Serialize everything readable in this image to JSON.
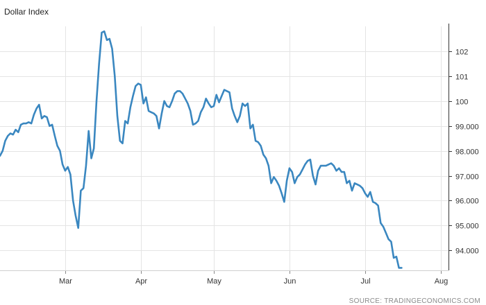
{
  "chart_data": {
    "type": "line",
    "title": "Dollar Index",
    "source": "SOURCE: TRADINGECONOMICS.COM",
    "line_color": "#3a87c0",
    "grid": true,
    "xlim": [
      0,
      172
    ],
    "ylim": [
      93.2,
      103.0
    ],
    "x_ticks": [
      {
        "label": "Mar",
        "x": 25
      },
      {
        "label": "Apr",
        "x": 54
      },
      {
        "label": "May",
        "x": 82
      },
      {
        "label": "Jun",
        "x": 111
      },
      {
        "label": "Jul",
        "x": 140
      },
      {
        "label": "Aug",
        "x": 169
      }
    ],
    "y_ticks": [
      {
        "label": "94.000",
        "value": 94
      },
      {
        "label": "95.000",
        "value": 95
      },
      {
        "label": "96.000",
        "value": 96
      },
      {
        "label": "97.000",
        "value": 97
      },
      {
        "label": "98.000",
        "value": 98
      },
      {
        "label": "99.000",
        "value": 99
      },
      {
        "label": "100",
        "value": 100
      },
      {
        "label": "101",
        "value": 101
      },
      {
        "label": "102",
        "value": 102
      }
    ],
    "series": [
      {
        "values": [
          [
            0,
            97.8
          ],
          [
            1,
            98.0
          ],
          [
            2,
            98.4
          ],
          [
            3,
            98.6
          ],
          [
            4,
            98.7
          ],
          [
            5,
            98.65
          ],
          [
            6,
            98.85
          ],
          [
            7,
            98.75
          ],
          [
            8,
            99.05
          ],
          [
            9,
            99.1
          ],
          [
            10,
            99.1
          ],
          [
            11,
            99.15
          ],
          [
            12,
            99.1
          ],
          [
            13,
            99.45
          ],
          [
            14,
            99.7
          ],
          [
            15,
            99.85
          ],
          [
            16,
            99.3
          ],
          [
            17,
            99.4
          ],
          [
            18,
            99.35
          ],
          [
            19,
            99.0
          ],
          [
            20,
            99.05
          ],
          [
            21,
            98.6
          ],
          [
            22,
            98.2
          ],
          [
            23,
            98.0
          ],
          [
            24,
            97.45
          ],
          [
            25,
            97.2
          ],
          [
            26,
            97.35
          ],
          [
            27,
            97.05
          ],
          [
            28,
            96.0
          ],
          [
            29,
            95.4
          ],
          [
            30,
            94.9
          ],
          [
            31,
            96.4
          ],
          [
            32,
            96.5
          ],
          [
            33,
            97.4
          ],
          [
            34,
            98.8
          ],
          [
            35,
            97.7
          ],
          [
            36,
            98.1
          ],
          [
            37,
            100.0
          ],
          [
            38,
            101.5
          ],
          [
            39,
            102.75
          ],
          [
            40,
            102.8
          ],
          [
            41,
            102.45
          ],
          [
            42,
            102.5
          ],
          [
            43,
            102.1
          ],
          [
            44,
            101.0
          ],
          [
            45,
            99.4
          ],
          [
            46,
            98.4
          ],
          [
            47,
            98.3
          ],
          [
            48,
            99.2
          ],
          [
            49,
            99.1
          ],
          [
            50,
            99.75
          ],
          [
            51,
            100.2
          ],
          [
            52,
            100.6
          ],
          [
            53,
            100.7
          ],
          [
            54,
            100.65
          ],
          [
            55,
            99.9
          ],
          [
            56,
            100.15
          ],
          [
            57,
            99.6
          ],
          [
            58,
            99.55
          ],
          [
            59,
            99.5
          ],
          [
            60,
            99.4
          ],
          [
            61,
            98.9
          ],
          [
            62,
            99.5
          ],
          [
            63,
            100.0
          ],
          [
            64,
            99.8
          ],
          [
            65,
            99.75
          ],
          [
            66,
            100.0
          ],
          [
            67,
            100.3
          ],
          [
            68,
            100.4
          ],
          [
            69,
            100.4
          ],
          [
            70,
            100.3
          ],
          [
            71,
            100.1
          ],
          [
            72,
            99.9
          ],
          [
            73,
            99.6
          ],
          [
            74,
            99.05
          ],
          [
            75,
            99.1
          ],
          [
            76,
            99.2
          ],
          [
            77,
            99.55
          ],
          [
            78,
            99.75
          ],
          [
            79,
            100.1
          ],
          [
            80,
            99.9
          ],
          [
            81,
            99.75
          ],
          [
            82,
            99.8
          ],
          [
            83,
            100.25
          ],
          [
            84,
            99.95
          ],
          [
            85,
            100.2
          ],
          [
            86,
            100.45
          ],
          [
            87,
            100.4
          ],
          [
            88,
            100.35
          ],
          [
            89,
            99.7
          ],
          [
            90,
            99.4
          ],
          [
            91,
            99.15
          ],
          [
            92,
            99.4
          ],
          [
            93,
            99.9
          ],
          [
            94,
            99.8
          ],
          [
            95,
            99.9
          ],
          [
            96,
            98.9
          ],
          [
            97,
            99.05
          ],
          [
            98,
            98.4
          ],
          [
            99,
            98.35
          ],
          [
            100,
            98.2
          ],
          [
            101,
            97.85
          ],
          [
            102,
            97.7
          ],
          [
            103,
            97.4
          ],
          [
            104,
            96.7
          ],
          [
            105,
            96.95
          ],
          [
            106,
            96.8
          ],
          [
            107,
            96.6
          ],
          [
            108,
            96.3
          ],
          [
            109,
            95.95
          ],
          [
            110,
            96.8
          ],
          [
            111,
            97.3
          ],
          [
            112,
            97.15
          ],
          [
            113,
            96.7
          ],
          [
            114,
            96.95
          ],
          [
            115,
            97.05
          ],
          [
            116,
            97.25
          ],
          [
            117,
            97.45
          ],
          [
            118,
            97.6
          ],
          [
            119,
            97.65
          ],
          [
            120,
            97.0
          ],
          [
            121,
            96.65
          ],
          [
            122,
            97.2
          ],
          [
            123,
            97.4
          ],
          [
            124,
            97.4
          ],
          [
            125,
            97.4
          ],
          [
            126,
            97.45
          ],
          [
            127,
            97.5
          ],
          [
            128,
            97.4
          ],
          [
            129,
            97.2
          ],
          [
            130,
            97.3
          ],
          [
            131,
            97.15
          ],
          [
            132,
            97.15
          ],
          [
            133,
            96.7
          ],
          [
            134,
            96.8
          ],
          [
            135,
            96.4
          ],
          [
            136,
            96.7
          ],
          [
            137,
            96.65
          ],
          [
            138,
            96.6
          ],
          [
            139,
            96.5
          ],
          [
            140,
            96.3
          ],
          [
            141,
            96.15
          ],
          [
            142,
            96.35
          ],
          [
            143,
            95.95
          ],
          [
            144,
            95.9
          ],
          [
            145,
            95.8
          ],
          [
            146,
            95.1
          ],
          [
            147,
            94.95
          ],
          [
            148,
            94.7
          ],
          [
            149,
            94.45
          ],
          [
            150,
            94.35
          ],
          [
            151,
            93.7
          ],
          [
            152,
            93.75
          ],
          [
            153,
            93.3
          ],
          [
            154,
            93.3
          ]
        ]
      }
    ]
  }
}
